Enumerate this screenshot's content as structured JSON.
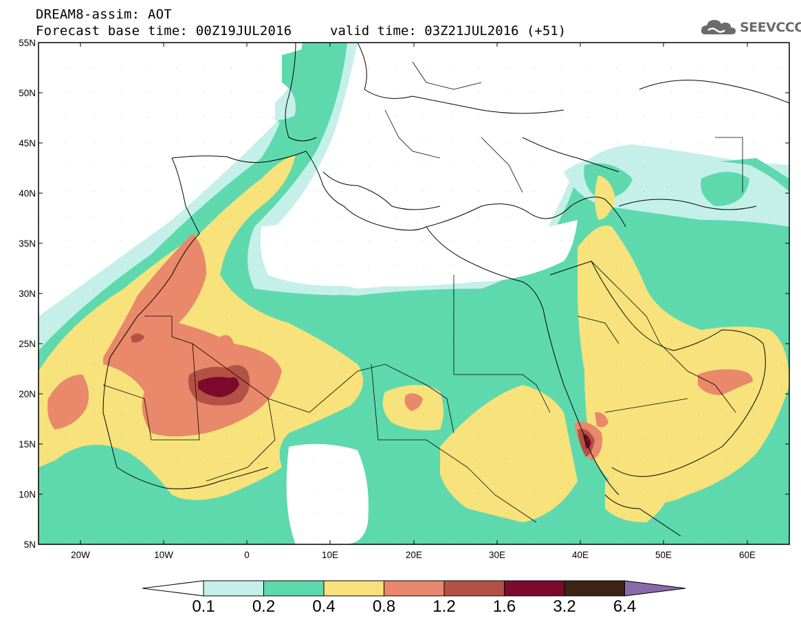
{
  "title": {
    "line1": "DREAM8-assim: AOT",
    "line2": "Forecast base time: 00Z19JUL2016",
    "valid": "valid time: 03Z21JUL2016 (+51)"
  },
  "logo": {
    "text": "SEEVCCC",
    "icon": "cloud-icon"
  },
  "axes": {
    "lat_labels": [
      "55N",
      "50N",
      "45N",
      "40N",
      "35N",
      "30N",
      "25N",
      "20N",
      "15N",
      "10N",
      "5N"
    ],
    "lon_labels": [
      "20W",
      "10W",
      "0",
      "10E",
      "20E",
      "30E",
      "40E",
      "50E",
      "60E"
    ],
    "lon_range": [
      -25,
      65
    ],
    "lat_range": [
      5,
      55
    ]
  },
  "colorbar": {
    "labels": [
      "0.1",
      "0.2",
      "0.4",
      "0.8",
      "1.2",
      "1.6",
      "3.2",
      "6.4"
    ],
    "colors": [
      "#ffffff",
      "#c4f0e9",
      "#5ed9ad",
      "#f7e27b",
      "#e9886a",
      "#b35244",
      "#7d0a2c",
      "#3d2414",
      "#8b6aab"
    ]
  }
}
